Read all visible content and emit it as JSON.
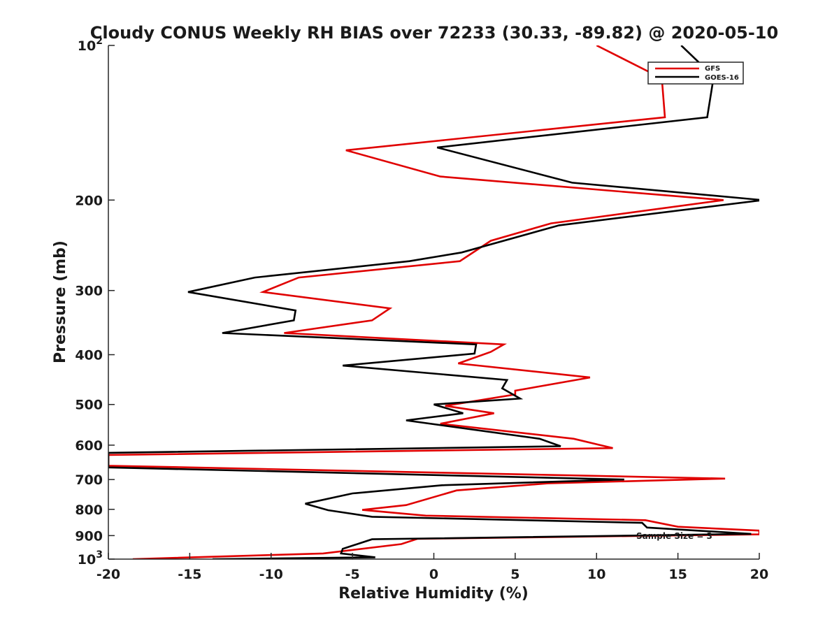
{
  "chart_data": {
    "type": "line",
    "title": "Cloudy CONUS Weekly RH BIAS over 72233 (30.33, -89.82) @ 2020-05-10",
    "xlabel": "Relative Humidity (%)",
    "ylabel": "Pressure (mb)",
    "xlim": [
      -20,
      20
    ],
    "ylim": [
      100,
      1000
    ],
    "yscale": "log",
    "y_reversed": true,
    "x_ticks": [
      -20,
      -15,
      -10,
      -5,
      0,
      5,
      10,
      15,
      20
    ],
    "y_ticks": [
      {
        "value": 100,
        "label": "10",
        "exp": "2"
      },
      {
        "value": 200,
        "label": "200"
      },
      {
        "value": 300,
        "label": "300"
      },
      {
        "value": 400,
        "label": "400"
      },
      {
        "value": 500,
        "label": "500"
      },
      {
        "value": 600,
        "label": "600"
      },
      {
        "value": 700,
        "label": "700"
      },
      {
        "value": 800,
        "label": "800"
      },
      {
        "value": 900,
        "label": "900"
      },
      {
        "value": 1000,
        "label": "10",
        "exp": "3"
      }
    ],
    "legend_position": "top-right",
    "annotation": "Sample Size = 3",
    "series": [
      {
        "name": "GFS",
        "color": "#e00000",
        "points": [
          [
            10,
            100
          ],
          [
            13.8,
            115
          ],
          [
            14.0,
            115
          ],
          [
            14.2,
            138
          ],
          [
            -5.4,
            160
          ],
          [
            0.4,
            180
          ],
          [
            17.8,
            200
          ],
          [
            7.2,
            222
          ],
          [
            3.5,
            240
          ],
          [
            1.6,
            263
          ],
          [
            -8.3,
            283
          ],
          [
            -10.5,
            302
          ],
          [
            -2.7,
            325
          ],
          [
            -3.8,
            343
          ],
          [
            -9.2,
            363
          ],
          [
            4.3,
            382
          ],
          [
            3.5,
            395
          ],
          [
            1.5,
            416
          ],
          [
            9.6,
            443
          ],
          [
            5.0,
            470
          ],
          [
            5.0,
            478
          ],
          [
            0.7,
            503
          ],
          [
            3.7,
            520
          ],
          [
            0.4,
            545
          ],
          [
            8.6,
            583
          ],
          [
            11.0,
            608
          ],
          [
            -20,
            627
          ],
          [
            -20,
            658
          ],
          [
            17.9,
            697
          ],
          [
            7.0,
            712
          ],
          [
            1.4,
            735
          ],
          [
            -1.7,
            785
          ],
          [
            -4.4,
            802
          ],
          [
            -0.5,
            823
          ],
          [
            13.0,
            840
          ],
          [
            15.0,
            865
          ],
          [
            20.0,
            880
          ],
          [
            20.0,
            895
          ],
          [
            -1.0,
            913
          ],
          [
            -2.0,
            935
          ],
          [
            -6.8,
            975
          ],
          [
            -18.5,
            1000
          ]
        ]
      },
      {
        "name": "GOES-16",
        "color": "#000000",
        "points": [
          [
            15.2,
            100
          ],
          [
            17.2,
            115
          ],
          [
            16.8,
            138
          ],
          [
            0.2,
            158
          ],
          [
            8.5,
            185
          ],
          [
            20.2,
            200
          ],
          [
            7.7,
            224
          ],
          [
            1.7,
            253
          ],
          [
            -1.5,
            263
          ],
          [
            -11.0,
            283
          ],
          [
            -15.1,
            302
          ],
          [
            -8.5,
            328
          ],
          [
            -8.6,
            343
          ],
          [
            -13.0,
            363
          ],
          [
            2.6,
            382
          ],
          [
            2.5,
            398
          ],
          [
            -5.6,
            420
          ],
          [
            4.5,
            448
          ],
          [
            4.2,
            465
          ],
          [
            5.3,
            487
          ],
          [
            0.0,
            500
          ],
          [
            1.8,
            520
          ],
          [
            -1.7,
            537
          ],
          [
            6.5,
            583
          ],
          [
            7.8,
            603
          ],
          [
            -20,
            621
          ],
          [
            -20,
            663
          ],
          [
            11.7,
            700
          ],
          [
            0.5,
            718
          ],
          [
            -5.0,
            745
          ],
          [
            -7.9,
            780
          ],
          [
            -6.5,
            803
          ],
          [
            -3.8,
            827
          ],
          [
            12.8,
            850
          ],
          [
            13.1,
            868
          ],
          [
            19.5,
            893
          ],
          [
            -3.8,
            915
          ],
          [
            -5.6,
            955
          ],
          [
            -5.7,
            975
          ],
          [
            -3.6,
            992
          ],
          [
            -13.6,
            1000
          ]
        ]
      }
    ]
  }
}
